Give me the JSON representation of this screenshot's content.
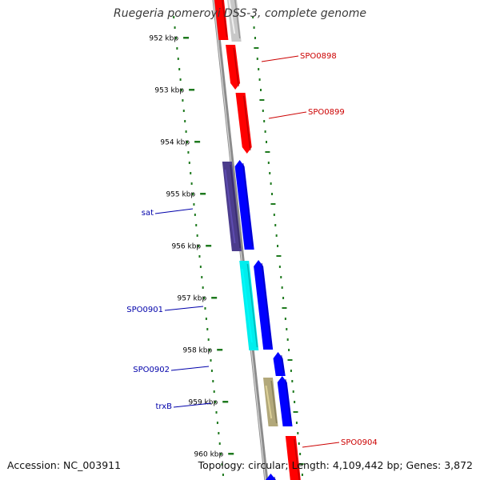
{
  "title": "Ruegeria pomeroyi DSS-3, complete genome",
  "accession": "Accession: NC_003911",
  "topology": "Topology: circular; Length: 4,109,442 bp; Genes: 3,872",
  "colors": {
    "backbone": "#8c8c8c",
    "tick": "#1f7a1f",
    "forward_label": "#cc0000",
    "reverse_label": "#0000aa"
  },
  "kbp_ticks": [
    {
      "label": "952 kbp"
    },
    {
      "label": "953 kbp"
    },
    {
      "label": "954 kbp"
    },
    {
      "label": "955 kbp"
    },
    {
      "label": "956 kbp"
    },
    {
      "label": "957 kbp"
    },
    {
      "label": "958 kbp"
    },
    {
      "label": "959 kbp"
    },
    {
      "label": "960 kbp"
    }
  ],
  "genes": [
    {
      "name": "",
      "strand": "forward",
      "color": "#c8c8c8"
    },
    {
      "name": "",
      "strand": "forward",
      "color": "#ff0000"
    },
    {
      "name": "SPO0898",
      "strand": "forward",
      "color": "#ff0000"
    },
    {
      "name": "SPO0899",
      "strand": "forward",
      "color": "#ff0000"
    },
    {
      "name": "",
      "strand": "reverse",
      "color": "#0000ff"
    },
    {
      "name": "sat",
      "strand": "reverse",
      "color": "#4b3c8c"
    },
    {
      "name": "",
      "strand": "reverse",
      "color": "#0000ff"
    },
    {
      "name": "SPO0901",
      "strand": "reverse",
      "color": "#00eeee"
    },
    {
      "name": "SPO0902",
      "strand": "reverse",
      "color": "#0000ff"
    },
    {
      "name": "",
      "strand": "reverse",
      "color": "#0000ff"
    },
    {
      "name": "trxB",
      "strand": "reverse",
      "color": "#b2a87a"
    },
    {
      "name": "SPO0904",
      "strand": "forward",
      "color": "#ff0000"
    },
    {
      "name": "",
      "strand": "reverse",
      "color": "#0000ff"
    }
  ]
}
